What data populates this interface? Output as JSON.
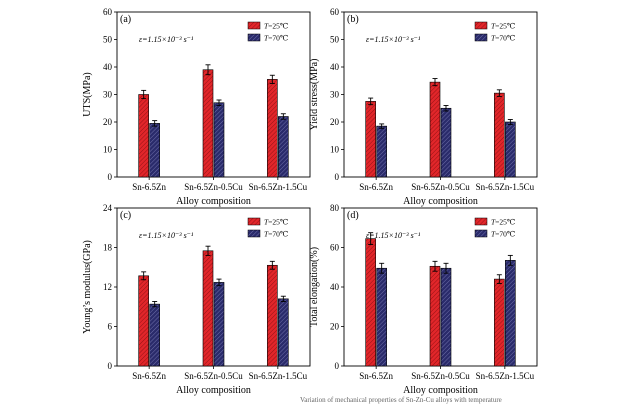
{
  "figure": {
    "caption_fragment": "Variation of mechanical properties of Sn-Zn-Cu alloys with temperature"
  },
  "chart_data": [
    {
      "type": "bar",
      "panel": "(a)",
      "ylabel": "UTS(MPa)",
      "xlabel": "Alloy composition",
      "categories": [
        "Sn-6.5Zn",
        "Sn-6.5Zn-0.5Cu",
        "Sn-6.5Zn-1.5Cu"
      ],
      "ylim": [
        0,
        60
      ],
      "yticks": [
        0,
        10,
        20,
        30,
        40,
        50,
        60
      ],
      "annotation": "ε=1.15×10⁻³ s⁻¹",
      "legend_position": "top-right",
      "series": [
        {
          "name": "T=25℃",
          "color": "#e2262a",
          "values": [
            30,
            39,
            35.5
          ],
          "errors": [
            1.5,
            1.8,
            1.5
          ]
        },
        {
          "name": "T=70℃",
          "color": "#2a2b6b",
          "values": [
            19.5,
            27,
            22
          ],
          "errors": [
            1.0,
            1.0,
            1.0
          ]
        }
      ]
    },
    {
      "type": "bar",
      "panel": "(b)",
      "ylabel": "Yield stress(MPa)",
      "xlabel": "Alloy composition",
      "categories": [
        "Sn-6.5Zn",
        "Sn-6.5Zn-0.5Cu",
        "Sn-6.5Zn-1.5Cu"
      ],
      "ylim": [
        0,
        60
      ],
      "yticks": [
        0,
        10,
        20,
        30,
        40,
        50,
        60
      ],
      "annotation": "ε=1.15×10⁻³ s⁻¹",
      "legend_position": "top-right",
      "series": [
        {
          "name": "T=25℃",
          "color": "#e2262a",
          "values": [
            27.5,
            34.5,
            30.5
          ],
          "errors": [
            1.2,
            1.3,
            1.2
          ]
        },
        {
          "name": "T=70℃",
          "color": "#2a2b6b",
          "values": [
            18.5,
            25,
            20
          ],
          "errors": [
            0.8,
            1.0,
            0.9
          ]
        }
      ]
    },
    {
      "type": "bar",
      "panel": "(c)",
      "ylabel": "Young’s modulus(GPa)",
      "xlabel": "Alloy composition",
      "categories": [
        "Sn-6.5Zn",
        "Sn-6.5Zn-0.5Cu",
        "Sn-6.5Zn-1.5Cu"
      ],
      "ylim": [
        0,
        24
      ],
      "yticks": [
        0,
        6,
        12,
        18,
        24
      ],
      "annotation": "ε=1.15×10⁻³ s⁻¹",
      "legend_position": "top-right",
      "series": [
        {
          "name": "T=25℃",
          "color": "#e2262a",
          "values": [
            13.7,
            17.5,
            15.3
          ],
          "errors": [
            0.6,
            0.7,
            0.6
          ]
        },
        {
          "name": "T=70℃",
          "color": "#2a2b6b",
          "values": [
            9.4,
            12.7,
            10.2
          ],
          "errors": [
            0.4,
            0.5,
            0.4
          ]
        }
      ]
    },
    {
      "type": "bar",
      "panel": "(d)",
      "ylabel": "Total elongation(%)",
      "xlabel": "Alloy composition",
      "categories": [
        "Sn-6.5Zn",
        "Sn-6.5Zn-0.5Cu",
        "Sn-6.5Zn-1.5Cu"
      ],
      "ylim": [
        0,
        80
      ],
      "yticks": [
        0,
        20,
        40,
        60,
        80
      ],
      "annotation": "ε=1.15×10⁻³ s⁻¹",
      "legend_position": "top-right",
      "series": [
        {
          "name": "T=25℃",
          "color": "#e2262a",
          "values": [
            64.5,
            50.5,
            44
          ],
          "errors": [
            3.0,
            2.5,
            2.2
          ]
        },
        {
          "name": "T=70℃",
          "color": "#2a2b6b",
          "values": [
            49.5,
            49.5,
            53.5
          ],
          "errors": [
            2.5,
            2.5,
            2.5
          ]
        }
      ]
    }
  ]
}
